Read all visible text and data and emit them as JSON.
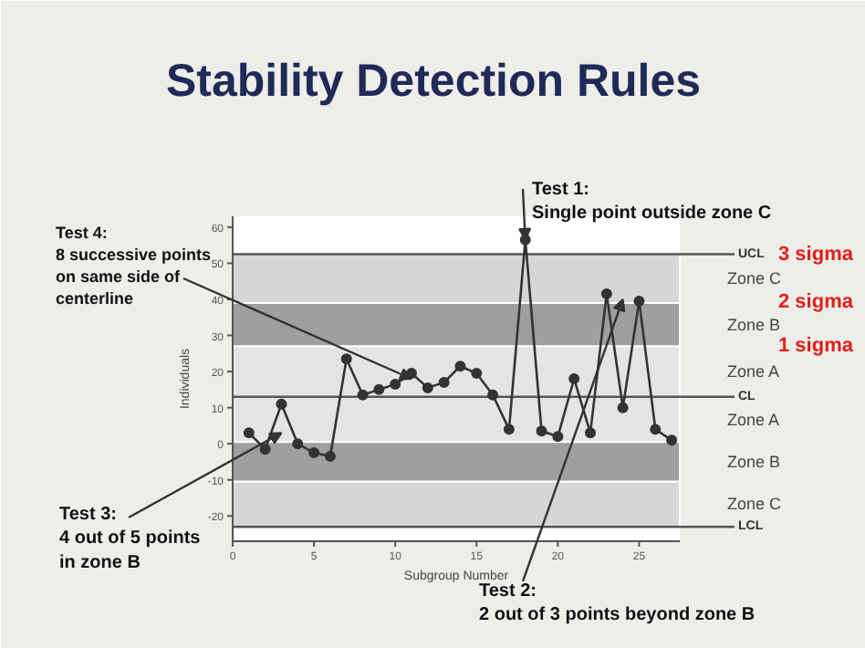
{
  "chart_data": {
    "type": "line",
    "title": "Stability Detection Rules",
    "xlabel": "Subgroup Number",
    "ylabel": "Individuals",
    "x": [
      1,
      2,
      3,
      4,
      5,
      6,
      7,
      8,
      9,
      10,
      11,
      12,
      13,
      14,
      15,
      16,
      17,
      18,
      19,
      20,
      21,
      22,
      23,
      24,
      25,
      26,
      27
    ],
    "series": [
      {
        "color": "#333333",
        "values": [
          3,
          -1.5,
          11,
          0,
          -2.5,
          -3.5,
          23.5,
          13.5,
          15,
          16.5,
          19.5,
          15.5,
          17,
          21.5,
          19.5,
          13.5,
          4,
          56.5,
          3.5,
          2,
          18,
          3,
          41.5,
          10,
          39.5,
          4,
          1
        ]
      }
    ],
    "marker": "circle",
    "line_style": "solid",
    "xlim": [
      0,
      27.5
    ],
    "ylim": [
      -27,
      63
    ],
    "xticks": [
      0,
      5,
      10,
      15,
      20,
      25
    ],
    "yticks": [
      -20,
      -10,
      0,
      10,
      20,
      30,
      40,
      50,
      60
    ],
    "bands": [
      {
        "axis": "y",
        "from": 39,
        "to": 52.5,
        "label": "Zone C",
        "color": "#d6d6d6"
      },
      {
        "axis": "y",
        "from": 27,
        "to": 39,
        "label": "Zone B",
        "color": "#9f9f9f"
      },
      {
        "axis": "y",
        "from": 13,
        "to": 27,
        "label": "Zone A",
        "color": "#e4e4e4"
      },
      {
        "axis": "y",
        "from": 0.5,
        "to": 13,
        "label": "Zone A",
        "color": "#e4e4e4"
      },
      {
        "axis": "y",
        "from": -10.5,
        "to": 0.5,
        "label": "Zone B",
        "color": "#9f9f9f"
      },
      {
        "axis": "y",
        "from": -23,
        "to": -10.5,
        "label": "Zone C",
        "color": "#d6d6d6"
      }
    ],
    "ref_lines": [
      {
        "axis": "y",
        "value": 52.5,
        "label": "UCL",
        "color": "#555555"
      },
      {
        "axis": "y",
        "value": 13,
        "label": "CL",
        "color": "#555555"
      },
      {
        "axis": "y",
        "value": -23,
        "label": "LCL",
        "color": "#555555"
      }
    ],
    "annotations": [
      {
        "text": "Test 4:\n8 successive points\non same side of\ncenterline",
        "x": 11,
        "y": 18
      },
      {
        "text": "Test 3:\n4 out of 5 points\nin  zone B",
        "x": 3,
        "y": 3
      },
      {
        "text": "Test 1:\nSingle point outside zone C",
        "x": 18,
        "y": 56.5
      },
      {
        "text": "Test 2:\n2 out of 3 points beyond zone B",
        "x": 24,
        "y": 40
      },
      "3 sigma",
      "2 sigma",
      "1 sigma"
    ]
  }
}
